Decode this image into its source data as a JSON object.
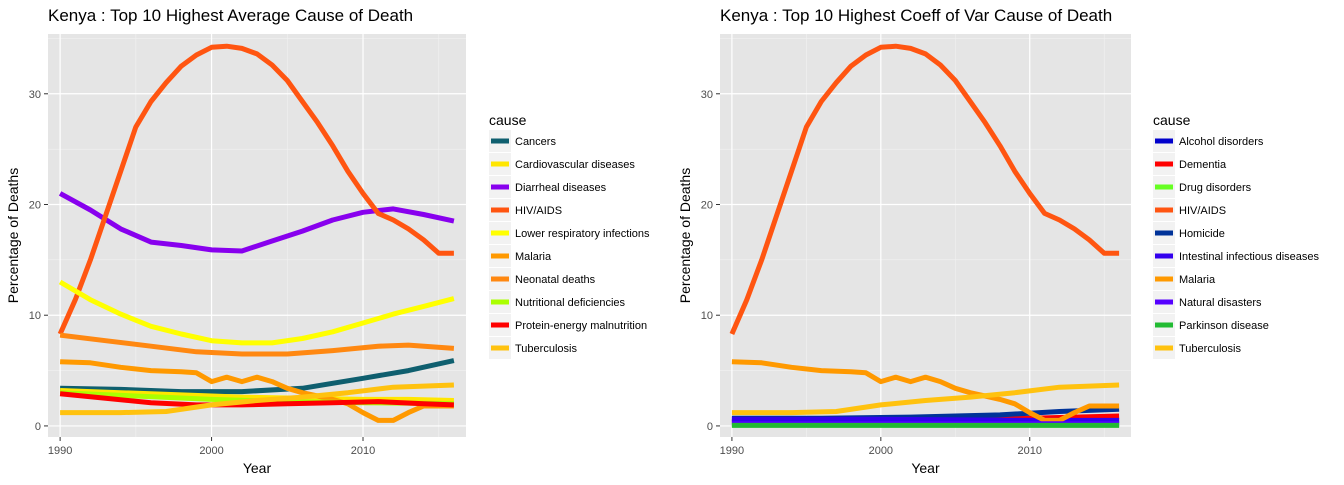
{
  "chart_data": [
    {
      "type": "line",
      "title": "Kenya : Top  10  Highest Average Cause of Death",
      "xlabel": "Year",
      "ylabel": "Percentage of Deaths",
      "xlim": [
        1989.2,
        2016.8
      ],
      "ylim": [
        -1,
        35.4
      ],
      "x_ticks": [
        1990,
        2000,
        2010
      ],
      "y_ticks": [
        0,
        10,
        20,
        30
      ],
      "grid": true,
      "legend_title": "cause",
      "legend_position": "right",
      "series": [
        {
          "name": "Cancers",
          "color": "#0f5f6f",
          "x": [
            1990,
            1994,
            1998,
            2002,
            2006,
            2010,
            2013,
            2016
          ],
          "y": [
            3.4,
            3.3,
            3.1,
            3.1,
            3.4,
            4.3,
            5.0,
            5.9
          ]
        },
        {
          "name": "Cardiovascular diseases",
          "color": "#ffe600",
          "x": [
            1990,
            1994,
            1998,
            2002,
            2006,
            2010,
            2013,
            2016
          ],
          "y": [
            3.2,
            3.0,
            2.8,
            2.6,
            2.5,
            2.4,
            2.4,
            2.3
          ]
        },
        {
          "name": "Diarrheal diseases",
          "color": "#8800ee",
          "x": [
            1990,
            1992,
            1994,
            1996,
            1998,
            2000,
            2002,
            2004,
            2006,
            2008,
            2010,
            2012,
            2014,
            2016
          ],
          "y": [
            21.0,
            19.5,
            17.8,
            16.6,
            16.3,
            15.9,
            15.8,
            16.7,
            17.6,
            18.6,
            19.3,
            19.6,
            19.1,
            18.5
          ]
        },
        {
          "name": "HIV/AIDS",
          "color": "#ff5511",
          "x": [
            1990,
            1991,
            1992,
            1993,
            1994,
            1995,
            1996,
            1997,
            1998,
            1999,
            2000,
            2001,
            2002,
            2003,
            2004,
            2005,
            2006,
            2007,
            2008,
            2009,
            2010,
            2011,
            2012,
            2013,
            2014,
            2015,
            2016
          ],
          "y": [
            8.3,
            11.4,
            15.0,
            19.0,
            23.0,
            27.0,
            29.3,
            31.0,
            32.5,
            33.5,
            34.2,
            34.3,
            34.1,
            33.6,
            32.6,
            31.2,
            29.3,
            27.4,
            25.3,
            23.0,
            21.0,
            19.2,
            18.6,
            17.8,
            16.8,
            15.6,
            15.6
          ]
        },
        {
          "name": "Lower respiratory infections",
          "color": "#ffff00",
          "x": [
            1990,
            1992,
            1994,
            1996,
            1998,
            2000,
            2002,
            2004,
            2006,
            2008,
            2010,
            2012,
            2014,
            2016
          ],
          "y": [
            13.0,
            11.4,
            10.1,
            9.0,
            8.3,
            7.7,
            7.5,
            7.5,
            7.9,
            8.5,
            9.3,
            10.1,
            10.8,
            11.5
          ]
        },
        {
          "name": "Malaria",
          "color": "#ff9900",
          "x": [
            1990,
            1992,
            1994,
            1996,
            1998,
            1999,
            2000,
            2001,
            2002,
            2003,
            2004,
            2005,
            2006,
            2007,
            2008,
            2009,
            2010,
            2011,
            2012,
            2013,
            2014,
            2016
          ],
          "y": [
            5.8,
            5.7,
            5.3,
            5.0,
            4.9,
            4.8,
            4.0,
            4.4,
            4.0,
            4.4,
            4.0,
            3.4,
            3.0,
            2.7,
            2.4,
            2.0,
            1.2,
            0.5,
            0.5,
            1.2,
            1.8,
            1.8
          ]
        },
        {
          "name": "Neonatal deaths",
          "color": "#ff8811",
          "x": [
            1990,
            1993,
            1996,
            1999,
            2002,
            2005,
            2008,
            2011,
            2013,
            2016
          ],
          "y": [
            8.2,
            7.7,
            7.2,
            6.7,
            6.5,
            6.5,
            6.8,
            7.2,
            7.3,
            7.0
          ]
        },
        {
          "name": "Nutritional deficiencies",
          "color": "#aaff00",
          "x": [
            1990,
            1995,
            2000,
            2005,
            2010,
            2016
          ],
          "y": [
            3.0,
            2.7,
            2.4,
            2.2,
            2.1,
            2.0
          ]
        },
        {
          "name": "Protein-energy malnutrition",
          "color": "#ff0000",
          "x": [
            1990,
            1993,
            1996,
            1999,
            2002,
            2005,
            2008,
            2011,
            2014,
            2016
          ],
          "y": [
            2.9,
            2.5,
            2.1,
            1.9,
            1.9,
            2.0,
            2.1,
            2.2,
            2.0,
            1.9
          ]
        },
        {
          "name": "Tuberculosis",
          "color": "#ffc20f",
          "x": [
            1990,
            1994,
            1997,
            2000,
            2003,
            2006,
            2009,
            2012,
            2016
          ],
          "y": [
            1.2,
            1.2,
            1.3,
            1.9,
            2.3,
            2.6,
            3.0,
            3.5,
            3.7
          ]
        }
      ]
    },
    {
      "type": "line",
      "title": "Kenya : Top  10  Highest Coeff of Var Cause of Death",
      "xlabel": "Year",
      "ylabel": "Percentage of Deaths",
      "xlim": [
        1989.2,
        2016.8
      ],
      "ylim": [
        -1,
        35.4
      ],
      "x_ticks": [
        1990,
        2000,
        2010
      ],
      "y_ticks": [
        0,
        10,
        20,
        30
      ],
      "grid": true,
      "legend_title": "cause",
      "legend_position": "right",
      "series": [
        {
          "name": "Alcohol disorders",
          "color": "#0000cc",
          "x": [
            1990,
            2000,
            2010,
            2016
          ],
          "y": [
            0.3,
            0.35,
            0.45,
            0.5
          ]
        },
        {
          "name": "Dementia",
          "color": "#ff0000",
          "x": [
            1990,
            2000,
            2010,
            2016
          ],
          "y": [
            0.4,
            0.5,
            0.7,
            0.9
          ]
        },
        {
          "name": "Drug disorders",
          "color": "#66ff22",
          "x": [
            1990,
            2000,
            2010,
            2016
          ],
          "y": [
            0.1,
            0.1,
            0.1,
            0.1
          ]
        },
        {
          "name": "HIV/AIDS",
          "color": "#ff5511",
          "x": [
            1990,
            1991,
            1992,
            1993,
            1994,
            1995,
            1996,
            1997,
            1998,
            1999,
            2000,
            2001,
            2002,
            2003,
            2004,
            2005,
            2006,
            2007,
            2008,
            2009,
            2010,
            2011,
            2012,
            2013,
            2014,
            2015,
            2016
          ],
          "y": [
            8.3,
            11.4,
            15.0,
            19.0,
            23.0,
            27.0,
            29.3,
            31.0,
            32.5,
            33.5,
            34.2,
            34.3,
            34.1,
            33.6,
            32.6,
            31.2,
            29.3,
            27.4,
            25.3,
            23.0,
            21.0,
            19.2,
            18.6,
            17.8,
            16.8,
            15.6,
            15.6
          ]
        },
        {
          "name": "Homicide",
          "color": "#003399",
          "x": [
            1990,
            1996,
            2002,
            2008,
            2012,
            2016
          ],
          "y": [
            0.7,
            0.7,
            0.8,
            1.0,
            1.3,
            1.5
          ]
        },
        {
          "name": "Intestinal infectious diseases",
          "color": "#3300ee",
          "x": [
            1990,
            2000,
            2010,
            2016
          ],
          "y": [
            0.6,
            0.6,
            0.5,
            0.5
          ]
        },
        {
          "name": "Malaria",
          "color": "#ff9900",
          "x": [
            1990,
            1992,
            1994,
            1996,
            1998,
            1999,
            2000,
            2001,
            2002,
            2003,
            2004,
            2005,
            2006,
            2007,
            2008,
            2009,
            2010,
            2011,
            2012,
            2013,
            2014,
            2016
          ],
          "y": [
            5.8,
            5.7,
            5.3,
            5.0,
            4.9,
            4.8,
            4.0,
            4.4,
            4.0,
            4.4,
            4.0,
            3.4,
            3.0,
            2.7,
            2.4,
            2.0,
            1.2,
            0.5,
            0.5,
            1.2,
            1.8,
            1.8
          ]
        },
        {
          "name": "Natural disasters",
          "color": "#5500ff",
          "x": [
            1990,
            2000,
            2010,
            2016
          ],
          "y": [
            0.2,
            0.2,
            0.2,
            0.2
          ]
        },
        {
          "name": "Parkinson disease",
          "color": "#22bb33",
          "x": [
            1990,
            2000,
            2010,
            2016
          ],
          "y": [
            0.05,
            0.05,
            0.05,
            0.05
          ]
        },
        {
          "name": "Tuberculosis",
          "color": "#ffc20f",
          "x": [
            1990,
            1994,
            1997,
            2000,
            2003,
            2006,
            2009,
            2012,
            2016
          ],
          "y": [
            1.2,
            1.2,
            1.3,
            1.9,
            2.3,
            2.6,
            3.0,
            3.5,
            3.7
          ]
        }
      ]
    }
  ]
}
